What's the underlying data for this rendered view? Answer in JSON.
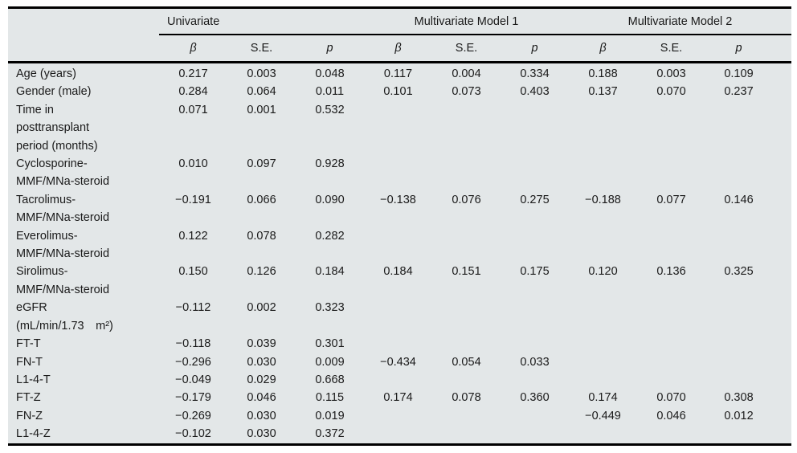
{
  "colors": {
    "table_background": "#e3e7e8",
    "rule": "#000000",
    "text": "#1a1a1a"
  },
  "header": {
    "groups": [
      {
        "label": "Univariate"
      },
      {
        "label": "Multivariate Model 1"
      },
      {
        "label": "Multivariate Model 2"
      }
    ],
    "sub": {
      "beta": "β",
      "se": "S.E.",
      "p": "p"
    }
  },
  "rows": [
    {
      "label": "Age (years)",
      "cells": [
        "0.217",
        "0.003",
        "0.048",
        "0.117",
        "0.004",
        "0.334",
        "0.188",
        "0.003",
        "0.109"
      ]
    },
    {
      "label": "Gender (male)",
      "cells": [
        "0.284",
        "0.064",
        "0.011",
        "0.101",
        "0.073",
        "0.403",
        "0.137",
        "0.070",
        "0.237"
      ]
    },
    {
      "label": "Time in\nposttransplant\nperiod (months)",
      "cells": [
        "0.071",
        "0.001",
        "0.532",
        "",
        "",
        "",
        "",
        "",
        ""
      ]
    },
    {
      "label": "Cyclosporine-\nMMF/MNa-steroid",
      "cells": [
        "0.010",
        "0.097",
        "0.928",
        "",
        "",
        "",
        "",
        "",
        ""
      ]
    },
    {
      "label": "Tacrolimus-\nMMF/MNa-steroid",
      "cells": [
        "−0.191",
        "0.066",
        "0.090",
        "−0.138",
        "0.076",
        "0.275",
        "−0.188",
        "0.077",
        "0.146"
      ]
    },
    {
      "label": "Everolimus-\nMMF/MNa-steroid",
      "cells": [
        "0.122",
        "0.078",
        "0.282",
        "",
        "",
        "",
        "",
        "",
        ""
      ]
    },
    {
      "label": "Sirolimus-\nMMF/MNa-steroid",
      "cells": [
        "0.150",
        "0.126",
        "0.184",
        "0.184",
        "0.151",
        "0.175",
        "0.120",
        "0.136",
        "0.325"
      ]
    },
    {
      "label": "eGFR\n(mL/min/1.73  m²)",
      "cells": [
        "−0.112",
        "0.002",
        "0.323",
        "",
        "",
        "",
        "",
        "",
        ""
      ]
    },
    {
      "label": "FT-T",
      "cells": [
        "−0.118",
        "0.039",
        "0.301",
        "",
        "",
        "",
        "",
        "",
        ""
      ]
    },
    {
      "label": "FN-T",
      "cells": [
        "−0.296",
        "0.030",
        "0.009",
        "−0.434",
        "0.054",
        "0.033",
        "",
        "",
        ""
      ]
    },
    {
      "label": "L1-4-T",
      "cells": [
        "−0.049",
        "0.029",
        "0.668",
        "",
        "",
        "",
        "",
        "",
        ""
      ]
    },
    {
      "label": "FT-Z",
      "cells": [
        "−0.179",
        "0.046",
        "0.115",
        "0.174",
        "0.078",
        "0.360",
        "0.174",
        "0.070",
        "0.308"
      ]
    },
    {
      "label": "FN-Z",
      "cells": [
        "−0.269",
        "0.030",
        "0.019",
        "",
        "",
        "",
        "−0.449",
        "0.046",
        "0.012"
      ]
    },
    {
      "label": "L1-4-Z",
      "cells": [
        "−0.102",
        "0.030",
        "0.372",
        "",
        "",
        "",
        "",
        "",
        ""
      ]
    }
  ]
}
